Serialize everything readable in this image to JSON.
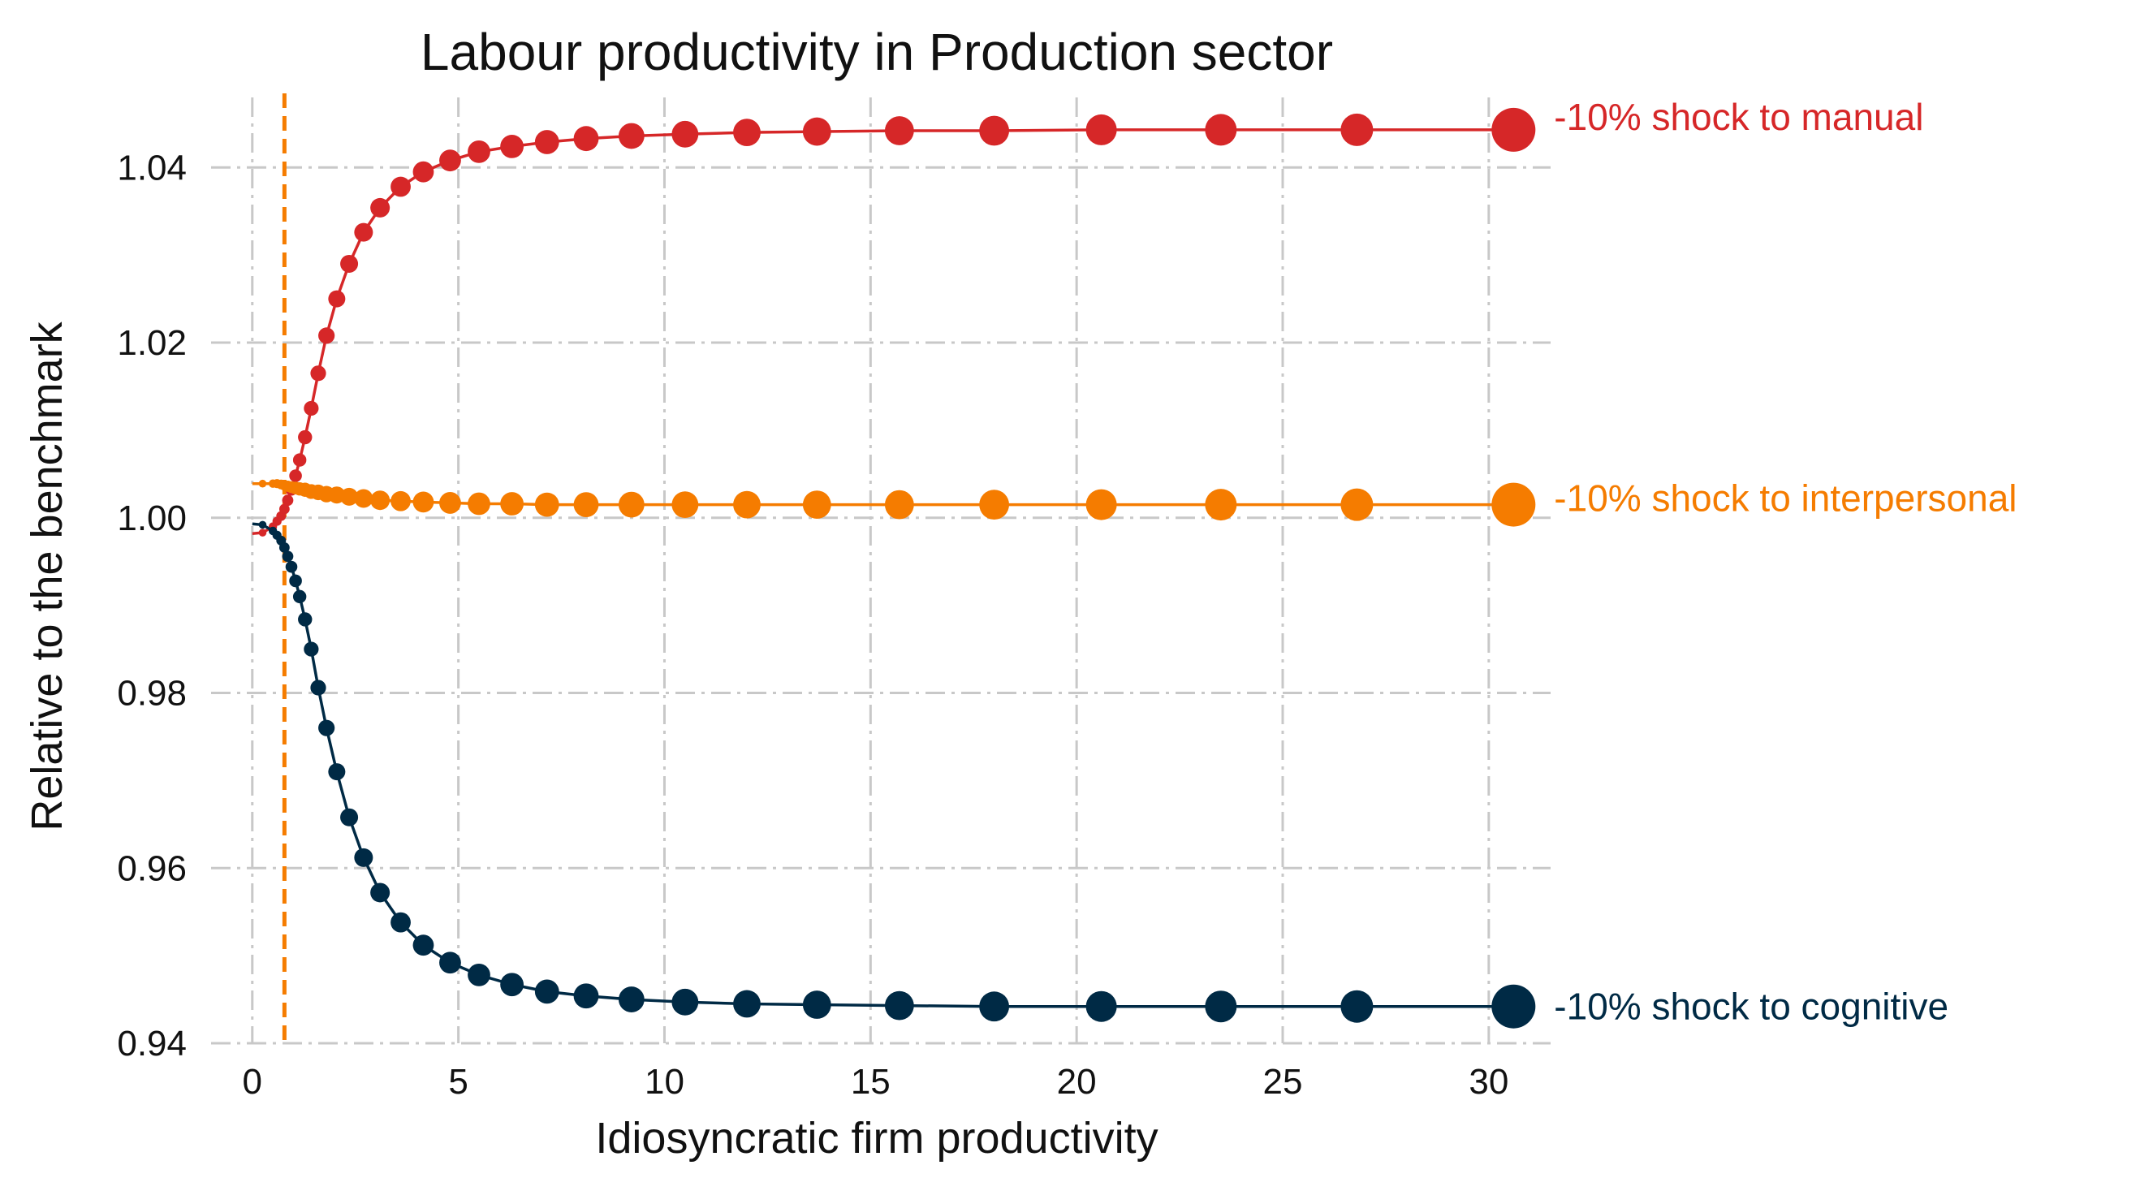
{
  "chart_data": {
    "type": "line",
    "title": "Labour productivity in Production sector",
    "xlabel": "Idiosyncratic firm productivity",
    "ylabel": "Relative to the benchmark",
    "xlim": [
      -1,
      31.5
    ],
    "ylim": [
      0.94,
      1.048
    ],
    "xticks": [
      0,
      5,
      10,
      15,
      20,
      25,
      30
    ],
    "xtick_labels": [
      "0",
      "5",
      "10",
      "15",
      "20",
      "25",
      "30"
    ],
    "yticks": [
      0.94,
      0.96,
      0.98,
      1.0,
      1.02,
      1.04
    ],
    "ytick_labels": [
      "0.94",
      "0.96",
      "0.98",
      "1.00",
      "1.02",
      "1.04"
    ],
    "grid": true,
    "vline": {
      "x": 0.78,
      "color": "#f57c00",
      "style": "dashed"
    },
    "x": [
      0.0,
      0.25,
      0.5,
      0.6,
      0.7,
      0.78,
      0.86,
      0.95,
      1.05,
      1.15,
      1.28,
      1.43,
      1.6,
      1.8,
      2.05,
      2.35,
      2.7,
      3.1,
      3.6,
      4.15,
      4.8,
      5.5,
      6.3,
      7.15,
      8.1,
      9.2,
      10.5,
      12.0,
      13.7,
      15.7,
      18.0,
      20.6,
      23.5,
      26.8,
      30.6
    ],
    "series": [
      {
        "name": "-10% shock to manual",
        "color": "#d62728",
        "values": [
          0.9982,
          0.9983,
          0.999,
          0.9996,
          1.0002,
          1.001,
          1.002,
          1.0032,
          1.0048,
          1.0066,
          1.0092,
          1.0125,
          1.0165,
          1.0208,
          1.025,
          1.029,
          1.0326,
          1.0354,
          1.0378,
          1.0395,
          1.0408,
          1.0418,
          1.0424,
          1.0429,
          1.0433,
          1.0436,
          1.0438,
          1.044,
          1.0441,
          1.0442,
          1.0442,
          1.0443,
          1.0443,
          1.0443,
          1.0443
        ]
      },
      {
        "name": "-10% shock to interpersonal",
        "color": "#f57c00",
        "values": [
          1.0039,
          1.0039,
          1.0039,
          1.0039,
          1.0038,
          1.0037,
          1.0036,
          1.0035,
          1.0034,
          1.0033,
          1.0032,
          1.003,
          1.0029,
          1.0027,
          1.0026,
          1.0024,
          1.0022,
          1.002,
          1.0019,
          1.0018,
          1.0017,
          1.0016,
          1.0016,
          1.0015,
          1.0015,
          1.0015,
          1.0015,
          1.0015,
          1.0015,
          1.0015,
          1.0015,
          1.0015,
          1.0015,
          1.0015,
          1.0015
        ]
      },
      {
        "name": "-10% shock to cognitive",
        "color": "#002a45",
        "values": [
          0.9993,
          0.9992,
          0.9985,
          0.998,
          0.9974,
          0.9966,
          0.9956,
          0.9944,
          0.9928,
          0.991,
          0.9884,
          0.985,
          0.9806,
          0.976,
          0.971,
          0.9658,
          0.9612,
          0.9572,
          0.9538,
          0.9512,
          0.9492,
          0.9478,
          0.9467,
          0.9459,
          0.9454,
          0.945,
          0.9447,
          0.9445,
          0.9444,
          0.9443,
          0.9442,
          0.9442,
          0.9442,
          0.9442,
          0.9442
        ]
      }
    ]
  }
}
